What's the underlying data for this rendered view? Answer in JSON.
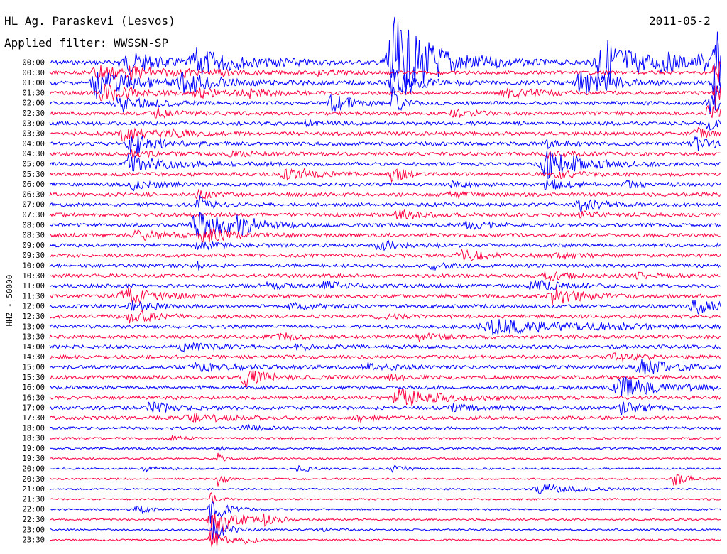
{
  "header": {
    "station": "HL Ag. Paraskevi (Lesvos)",
    "filter": "Applied filter: WWSSN-SP",
    "date": "2011-05-2"
  },
  "chart_data": {
    "type": "line",
    "subtype": "helicorder",
    "title": "HL Ag. Paraskevi (Lesvos)",
    "subtitle": "Applied filter: WWSSN-SP",
    "ylabel": "HHZ - 50000",
    "row_colors": [
      "#0000ff",
      "#ff0040"
    ],
    "grid": false,
    "rows": [
      {
        "label": "00:00",
        "noise": 3,
        "events": [
          {
            "x": 0.12,
            "amp": 12,
            "dur": 0.05
          },
          {
            "x": 0.1,
            "amp": 7,
            "dur": 0.02
          },
          {
            "x": 0.22,
            "amp": 18,
            "dur": 0.06
          },
          {
            "x": 0.34,
            "amp": 3,
            "dur": 0.03
          },
          {
            "x": 0.51,
            "amp": 65,
            "dur": 0.06
          },
          {
            "x": 0.82,
            "amp": 38,
            "dur": 0.05
          },
          {
            "x": 0.91,
            "amp": 8,
            "dur": 0.04
          },
          {
            "x": 0.97,
            "amp": 10,
            "dur": 0.03
          },
          {
            "x": 0.99,
            "amp": 45,
            "dur": 0.015
          }
        ]
      },
      {
        "label": "00:30",
        "noise": 2.5,
        "events": [
          {
            "x": 0.07,
            "amp": 14,
            "dur": 0.04
          },
          {
            "x": 0.12,
            "amp": 4,
            "dur": 0.03
          },
          {
            "x": 0.15,
            "amp": 3,
            "dur": 0.03
          },
          {
            "x": 0.2,
            "amp": 7,
            "dur": 0.01
          },
          {
            "x": 0.25,
            "amp": 4,
            "dur": 0.03
          },
          {
            "x": 0.4,
            "amp": 3,
            "dur": 0.03
          },
          {
            "x": 0.99,
            "amp": 30,
            "dur": 0.015
          }
        ]
      },
      {
        "label": "01:00",
        "noise": 3,
        "events": [
          {
            "x": 0.07,
            "amp": 20,
            "dur": 0.05
          },
          {
            "x": 0.2,
            "amp": 13,
            "dur": 0.05
          },
          {
            "x": 0.51,
            "amp": 22,
            "dur": 0.03
          },
          {
            "x": 0.79,
            "amp": 16,
            "dur": 0.04
          },
          {
            "x": 0.83,
            "amp": 10,
            "dur": 0.01
          },
          {
            "x": 0.99,
            "amp": 28,
            "dur": 0.015
          }
        ]
      },
      {
        "label": "01:30",
        "noise": 2.5,
        "events": [
          {
            "x": 0.08,
            "amp": 14,
            "dur": 0.04
          },
          {
            "x": 0.22,
            "amp": 6,
            "dur": 0.04
          },
          {
            "x": 0.29,
            "amp": 7,
            "dur": 0.03
          },
          {
            "x": 0.68,
            "amp": 6,
            "dur": 0.05
          },
          {
            "x": 0.99,
            "amp": 25,
            "dur": 0.015
          }
        ]
      },
      {
        "label": "02:00",
        "noise": 2.5,
        "events": [
          {
            "x": 0.1,
            "amp": 12,
            "dur": 0.04
          },
          {
            "x": 0.42,
            "amp": 12,
            "dur": 0.03
          },
          {
            "x": 0.51,
            "amp": 25,
            "dur": 0.01
          },
          {
            "x": 0.98,
            "amp": 20,
            "dur": 0.015
          }
        ]
      },
      {
        "label": "02:30",
        "noise": 2.5,
        "events": [
          {
            "x": 0.16,
            "amp": 8,
            "dur": 0.03
          },
          {
            "x": 0.6,
            "amp": 5,
            "dur": 0.03
          },
          {
            "x": 0.98,
            "amp": 14,
            "dur": 0.015
          }
        ]
      },
      {
        "label": "03:00",
        "noise": 2.5,
        "events": [
          {
            "x": 0.38,
            "amp": 3,
            "dur": 0.03
          },
          {
            "x": 0.98,
            "amp": 10,
            "dur": 0.015
          }
        ]
      },
      {
        "label": "03:30",
        "noise": 2.5,
        "events": [
          {
            "x": 0.11,
            "amp": 10,
            "dur": 0.04
          },
          {
            "x": 0.18,
            "amp": 4,
            "dur": 0.03
          },
          {
            "x": 0.96,
            "amp": 10,
            "dur": 0.015
          }
        ]
      },
      {
        "label": "04:00",
        "noise": 2.5,
        "events": [
          {
            "x": 0.12,
            "amp": 18,
            "dur": 0.04
          },
          {
            "x": 0.74,
            "amp": 6,
            "dur": 0.03
          },
          {
            "x": 0.96,
            "amp": 10,
            "dur": 0.03
          }
        ]
      },
      {
        "label": "04:30",
        "noise": 2.5,
        "events": [
          {
            "x": 0.12,
            "amp": 5,
            "dur": 0.03
          },
          {
            "x": 0.27,
            "amp": 4,
            "dur": 0.03
          },
          {
            "x": 0.74,
            "amp": 4,
            "dur": 0.03
          }
        ]
      },
      {
        "label": "05:00",
        "noise": 2.5,
        "events": [
          {
            "x": 0.12,
            "amp": 14,
            "dur": 0.05
          },
          {
            "x": 0.74,
            "amp": 20,
            "dur": 0.05
          }
        ]
      },
      {
        "label": "05:30",
        "noise": 2.5,
        "events": [
          {
            "x": 0.35,
            "amp": 14,
            "dur": 0.03
          },
          {
            "x": 0.51,
            "amp": 10,
            "dur": 0.02
          },
          {
            "x": 0.75,
            "amp": 6,
            "dur": 0.03
          }
        ]
      },
      {
        "label": "06:00",
        "noise": 2.5,
        "events": [
          {
            "x": 0.12,
            "amp": 8,
            "dur": 0.03
          },
          {
            "x": 0.6,
            "amp": 3,
            "dur": 0.03
          },
          {
            "x": 0.74,
            "amp": 8,
            "dur": 0.03
          },
          {
            "x": 0.86,
            "amp": 4,
            "dur": 0.03
          }
        ]
      },
      {
        "label": "06:30",
        "noise": 2.5,
        "events": [
          {
            "x": 0.22,
            "amp": 6,
            "dur": 0.02
          },
          {
            "x": 0.6,
            "amp": 3,
            "dur": 0.03
          }
        ]
      },
      {
        "label": "07:00",
        "noise": 2.5,
        "events": [
          {
            "x": 0.22,
            "amp": 12,
            "dur": 0.02
          },
          {
            "x": 0.79,
            "amp": 9,
            "dur": 0.03
          }
        ]
      },
      {
        "label": "07:30",
        "noise": 2.5,
        "events": [
          {
            "x": 0.52,
            "amp": 8,
            "dur": 0.03
          },
          {
            "x": 0.79,
            "amp": 4,
            "dur": 0.03
          }
        ]
      },
      {
        "label": "08:00",
        "noise": 2.5,
        "events": [
          {
            "x": 0.22,
            "amp": 20,
            "dur": 0.05
          },
          {
            "x": 0.28,
            "amp": 12,
            "dur": 0.02
          },
          {
            "x": 0.62,
            "amp": 6,
            "dur": 0.03
          }
        ]
      },
      {
        "label": "08:30",
        "noise": 2.5,
        "events": [
          {
            "x": 0.13,
            "amp": 9,
            "dur": 0.03
          },
          {
            "x": 0.23,
            "amp": 10,
            "dur": 0.04
          }
        ]
      },
      {
        "label": "09:00",
        "noise": 2.5,
        "events": [
          {
            "x": 0.22,
            "amp": 8,
            "dur": 0.02
          },
          {
            "x": 0.49,
            "amp": 7,
            "dur": 0.03
          }
        ]
      },
      {
        "label": "09:30",
        "noise": 2.5,
        "events": [
          {
            "x": 0.61,
            "amp": 10,
            "dur": 0.03
          },
          {
            "x": 0.75,
            "amp": 4,
            "dur": 0.03
          }
        ]
      },
      {
        "label": "10:00",
        "noise": 2.5,
        "events": [
          {
            "x": 0.22,
            "amp": 6,
            "dur": 0.01
          },
          {
            "x": 0.57,
            "amp": 4,
            "dur": 0.03
          }
        ]
      },
      {
        "label": "10:30",
        "noise": 2.5,
        "events": [
          {
            "x": 0.74,
            "amp": 6,
            "dur": 0.03
          },
          {
            "x": 0.87,
            "amp": 4,
            "dur": 0.03
          }
        ]
      },
      {
        "label": "11:00",
        "noise": 2.5,
        "events": [
          {
            "x": 0.32,
            "amp": 5,
            "dur": 0.03
          },
          {
            "x": 0.41,
            "amp": 6,
            "dur": 0.03
          },
          {
            "x": 0.72,
            "amp": 8,
            "dur": 0.04
          }
        ]
      },
      {
        "label": "11:30",
        "noise": 2.5,
        "events": [
          {
            "x": 0.11,
            "amp": 14,
            "dur": 0.04
          },
          {
            "x": 0.75,
            "amp": 12,
            "dur": 0.04
          }
        ]
      },
      {
        "label": "12:00",
        "noise": 2.5,
        "events": [
          {
            "x": 0.12,
            "amp": 8,
            "dur": 0.03
          },
          {
            "x": 0.36,
            "amp": 4,
            "dur": 0.03
          },
          {
            "x": 0.96,
            "amp": 10,
            "dur": 0.04
          }
        ]
      },
      {
        "label": "12:30",
        "noise": 2.5,
        "events": [
          {
            "x": 0.12,
            "amp": 10,
            "dur": 0.03
          },
          {
            "x": 0.49,
            "amp": 3,
            "dur": 0.03
          }
        ]
      },
      {
        "label": "13:00",
        "noise": 2.5,
        "events": [
          {
            "x": 0.66,
            "amp": 10,
            "dur": 0.1
          },
          {
            "x": 0.82,
            "amp": 4,
            "dur": 0.03
          }
        ]
      },
      {
        "label": "13:30",
        "noise": 2.5,
        "events": [
          {
            "x": 0.34,
            "amp": 5,
            "dur": 0.03
          },
          {
            "x": 0.55,
            "amp": 4,
            "dur": 0.03
          }
        ]
      },
      {
        "label": "14:00",
        "noise": 2.5,
        "events": [
          {
            "x": 0.2,
            "amp": 5,
            "dur": 0.04
          },
          {
            "x": 0.37,
            "amp": 4,
            "dur": 0.03
          }
        ]
      },
      {
        "label": "14:30",
        "noise": 2.5,
        "events": [
          {
            "x": 0.84,
            "amp": 4,
            "dur": 0.04
          }
        ]
      },
      {
        "label": "15:00",
        "noise": 2.5,
        "events": [
          {
            "x": 0.22,
            "amp": 6,
            "dur": 0.05
          },
          {
            "x": 0.47,
            "amp": 6,
            "dur": 0.04
          },
          {
            "x": 0.88,
            "amp": 10,
            "dur": 0.05
          }
        ]
      },
      {
        "label": "15:30",
        "noise": 2.5,
        "events": [
          {
            "x": 0.29,
            "amp": 14,
            "dur": 0.03
          },
          {
            "x": 0.51,
            "amp": 4,
            "dur": 0.03
          }
        ]
      },
      {
        "label": "16:00",
        "noise": 2.5,
        "events": [
          {
            "x": 0.85,
            "amp": 14,
            "dur": 0.06
          }
        ]
      },
      {
        "label": "16:30",
        "noise": 2.5,
        "events": [
          {
            "x": 0.52,
            "amp": 12,
            "dur": 0.06
          }
        ]
      },
      {
        "label": "17:00",
        "noise": 2.5,
        "events": [
          {
            "x": 0.15,
            "amp": 9,
            "dur": 0.03
          },
          {
            "x": 0.6,
            "amp": 5,
            "dur": 0.04
          },
          {
            "x": 0.85,
            "amp": 9,
            "dur": 0.03
          }
        ]
      },
      {
        "label": "17:30",
        "noise": 2.5,
        "events": [
          {
            "x": 0.21,
            "amp": 6,
            "dur": 0.05
          },
          {
            "x": 0.46,
            "amp": 4,
            "dur": 0.03
          }
        ]
      },
      {
        "label": "18:00",
        "noise": 2,
        "events": [
          {
            "x": 0.29,
            "amp": 3,
            "dur": 0.03
          }
        ]
      },
      {
        "label": "18:30",
        "noise": 1.5,
        "events": [
          {
            "x": 0.18,
            "amp": 3,
            "dur": 0.02
          }
        ]
      },
      {
        "label": "19:00",
        "noise": 1.5,
        "events": [
          {
            "x": 0.25,
            "amp": 3,
            "dur": 0.01
          }
        ]
      },
      {
        "label": "19:30",
        "noise": 1.2,
        "events": [
          {
            "x": 0.25,
            "amp": 7,
            "dur": 0.01
          }
        ]
      },
      {
        "label": "20:00",
        "noise": 1.2,
        "events": [
          {
            "x": 0.14,
            "amp": 4,
            "dur": 0.02
          },
          {
            "x": 0.37,
            "amp": 4,
            "dur": 0.02
          },
          {
            "x": 0.51,
            "amp": 6,
            "dur": 0.02
          }
        ]
      },
      {
        "label": "20:30",
        "noise": 1.2,
        "events": [
          {
            "x": 0.25,
            "amp": 10,
            "dur": 0.01
          },
          {
            "x": 0.93,
            "amp": 10,
            "dur": 0.02
          }
        ]
      },
      {
        "label": "21:00",
        "noise": 1.2,
        "events": [
          {
            "x": 0.73,
            "amp": 8,
            "dur": 0.05
          }
        ]
      },
      {
        "label": "21:30",
        "noise": 1.2,
        "events": [
          {
            "x": 0.24,
            "amp": 10,
            "dur": 0.01
          }
        ]
      },
      {
        "label": "22:00",
        "noise": 1.2,
        "events": [
          {
            "x": 0.13,
            "amp": 6,
            "dur": 0.02
          },
          {
            "x": 0.24,
            "amp": 20,
            "dur": 0.02
          }
        ]
      },
      {
        "label": "22:30",
        "noise": 1.2,
        "events": [
          {
            "x": 0.24,
            "amp": 30,
            "dur": 0.03
          },
          {
            "x": 0.32,
            "amp": 8,
            "dur": 0.02
          }
        ]
      },
      {
        "label": "23:00",
        "noise": 1.2,
        "events": [
          {
            "x": 0.24,
            "amp": 20,
            "dur": 0.02
          },
          {
            "x": 0.4,
            "amp": 3,
            "dur": 0.02
          }
        ]
      },
      {
        "label": "23:30",
        "noise": 1.2,
        "events": [
          {
            "x": 0.24,
            "amp": 14,
            "dur": 0.02
          },
          {
            "x": 0.29,
            "amp": 6,
            "dur": 0.02
          }
        ]
      }
    ]
  }
}
